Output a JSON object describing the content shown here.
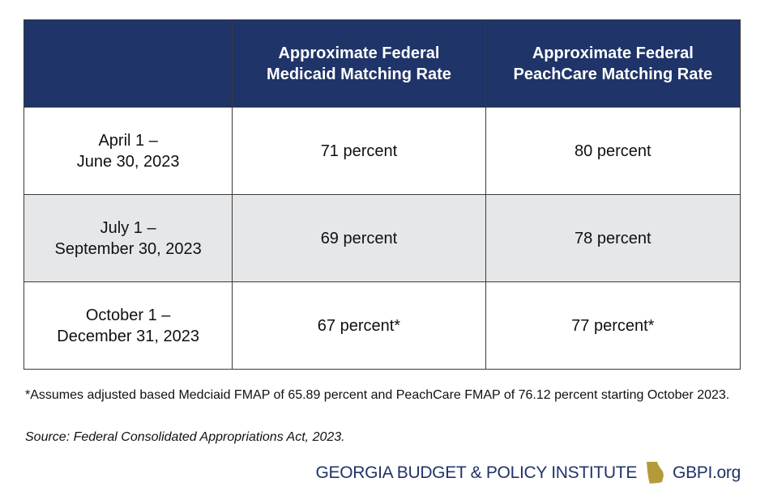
{
  "table": {
    "headers": [
      "",
      [
        "Approximate Federal",
        "Medicaid Matching Rate"
      ],
      [
        "Approximate Federal",
        "PeachCare Matching Rate"
      ]
    ],
    "rows": [
      {
        "period": [
          "April 1 –",
          "June 30, 2023"
        ],
        "medicaid": "71 percent",
        "peachcare": "80 percent"
      },
      {
        "period": [
          "July 1 –",
          "September 30, 2023"
        ],
        "medicaid": "69 percent",
        "peachcare": "78 percent"
      },
      {
        "period": [
          "October 1 –",
          "December 31, 2023"
        ],
        "medicaid": "67 percent*",
        "peachcare": "77 percent*"
      }
    ]
  },
  "footnote": "*Assumes adjusted based Medciaid FMAP of 65.89 percent and PeachCare FMAP of 76.12 percent starting October 2023.",
  "source": "Source: Federal Consolidated Appropriations Act, 2023.",
  "branding": {
    "org_name": "GEORGIA BUDGET & POLICY INSTITUTE",
    "site": "GBPI.org",
    "brand_color": "#1f3468",
    "map_color": "#b59a3a"
  },
  "colors": {
    "header_bg": "#1f3468",
    "shaded_row_bg": "#e6e7e9",
    "border": "#3a3a3a"
  },
  "chart_data": {
    "type": "table",
    "columns": [
      "",
      "Approximate Federal Medicaid Matching Rate",
      "Approximate Federal PeachCare Matching Rate"
    ],
    "rows": [
      [
        "April 1 – June 30, 2023",
        "71 percent",
        "80 percent"
      ],
      [
        "July 1 – September 30, 2023",
        "69 percent",
        "78 percent"
      ],
      [
        "October 1 – December 31, 2023",
        "67 percent*",
        "77 percent*"
      ]
    ]
  }
}
